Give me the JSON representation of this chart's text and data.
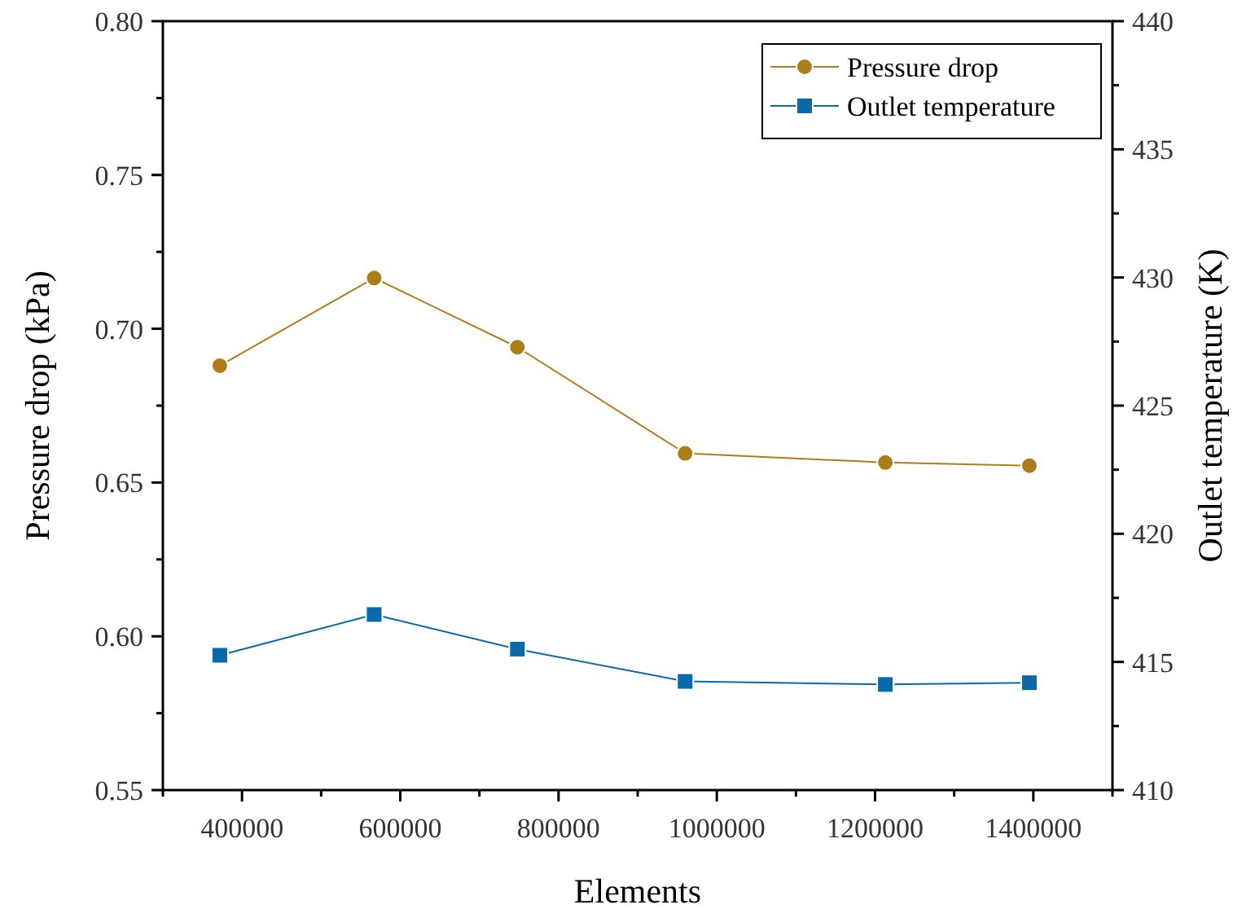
{
  "chart_data": {
    "type": "line",
    "xlabel": "Elements",
    "ylabel": "Pressure drop (kPa)",
    "y2label": "Outlet temperature (K)",
    "x": [
      372000,
      567000,
      748000,
      960000,
      1213000,
      1395000
    ],
    "xlim": [
      300000,
      1500000
    ],
    "xticks": [
      {
        "value": 300000,
        "label": null
      },
      400000,
      {
        "value": 500000,
        "label": null
      },
      600000,
      {
        "value": 700000,
        "label": null
      },
      800000,
      {
        "value": 900000,
        "label": null
      },
      1000000,
      {
        "value": 1100000,
        "label": null
      },
      1200000,
      {
        "value": 1300000,
        "label": null
      },
      1400000,
      {
        "value": 1500000,
        "label": null
      }
    ],
    "ylim": [
      0.55,
      0.8
    ],
    "yticks": [
      {
        "value": 0.55,
        "label": "0.55"
      },
      {
        "value": 0.575,
        "label": null
      },
      {
        "value": 0.6,
        "label": "0.60"
      },
      {
        "value": 0.625,
        "label": null
      },
      {
        "value": 0.65,
        "label": "0.65"
      },
      {
        "value": 0.675,
        "label": null
      },
      {
        "value": 0.7,
        "label": "0.70"
      },
      {
        "value": 0.725,
        "label": null
      },
      {
        "value": 0.75,
        "label": "0.75"
      },
      {
        "value": 0.775,
        "label": null
      },
      {
        "value": 0.8,
        "label": "0.80"
      }
    ],
    "y2lim": [
      410,
      440
    ],
    "y2ticks": [
      410,
      {
        "value": 412.5,
        "label": null
      },
      415,
      {
        "value": 417.5,
        "label": null
      },
      420,
      {
        "value": 422.5,
        "label": null
      },
      425,
      {
        "value": 427.5,
        "label": null
      },
      430,
      {
        "value": 432.5,
        "label": null
      },
      435,
      {
        "value": 437.5,
        "label": null
      },
      440
    ],
    "series": [
      {
        "name": "Pressure drop",
        "color": "#ad7d18",
        "marker": "circle",
        "values": [
          0.688,
          0.7165,
          0.694,
          0.6595,
          0.6565,
          0.6555
        ]
      },
      {
        "name": "Outlet temperature",
        "color": "#0a69ab",
        "marker": "square",
        "axis": "y2",
        "values": [
          415.26,
          416.85,
          415.5,
          414.24,
          414.12,
          414.19
        ]
      }
    ],
    "legend": "top right",
    "grid": false,
    "line_style": "solid"
  }
}
